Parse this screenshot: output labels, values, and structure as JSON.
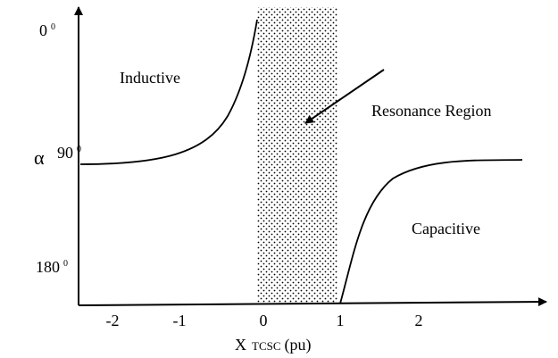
{
  "y_axis": {
    "symbol": "α",
    "labels": [
      {
        "text": "0",
        "sup": "0"
      },
      {
        "text": "90",
        "sup": "0"
      },
      {
        "text": "180",
        "sup": "0"
      }
    ]
  },
  "x_axis": {
    "labels": [
      "-2",
      "-1",
      "0",
      "1",
      "2"
    ],
    "title": {
      "main": "X",
      "subscript": "TCSC",
      "unit": "(pu)"
    }
  },
  "regions": {
    "inductive": "Inductive",
    "resonance": "Resonance Region",
    "capacitive": "Capacitive"
  }
}
